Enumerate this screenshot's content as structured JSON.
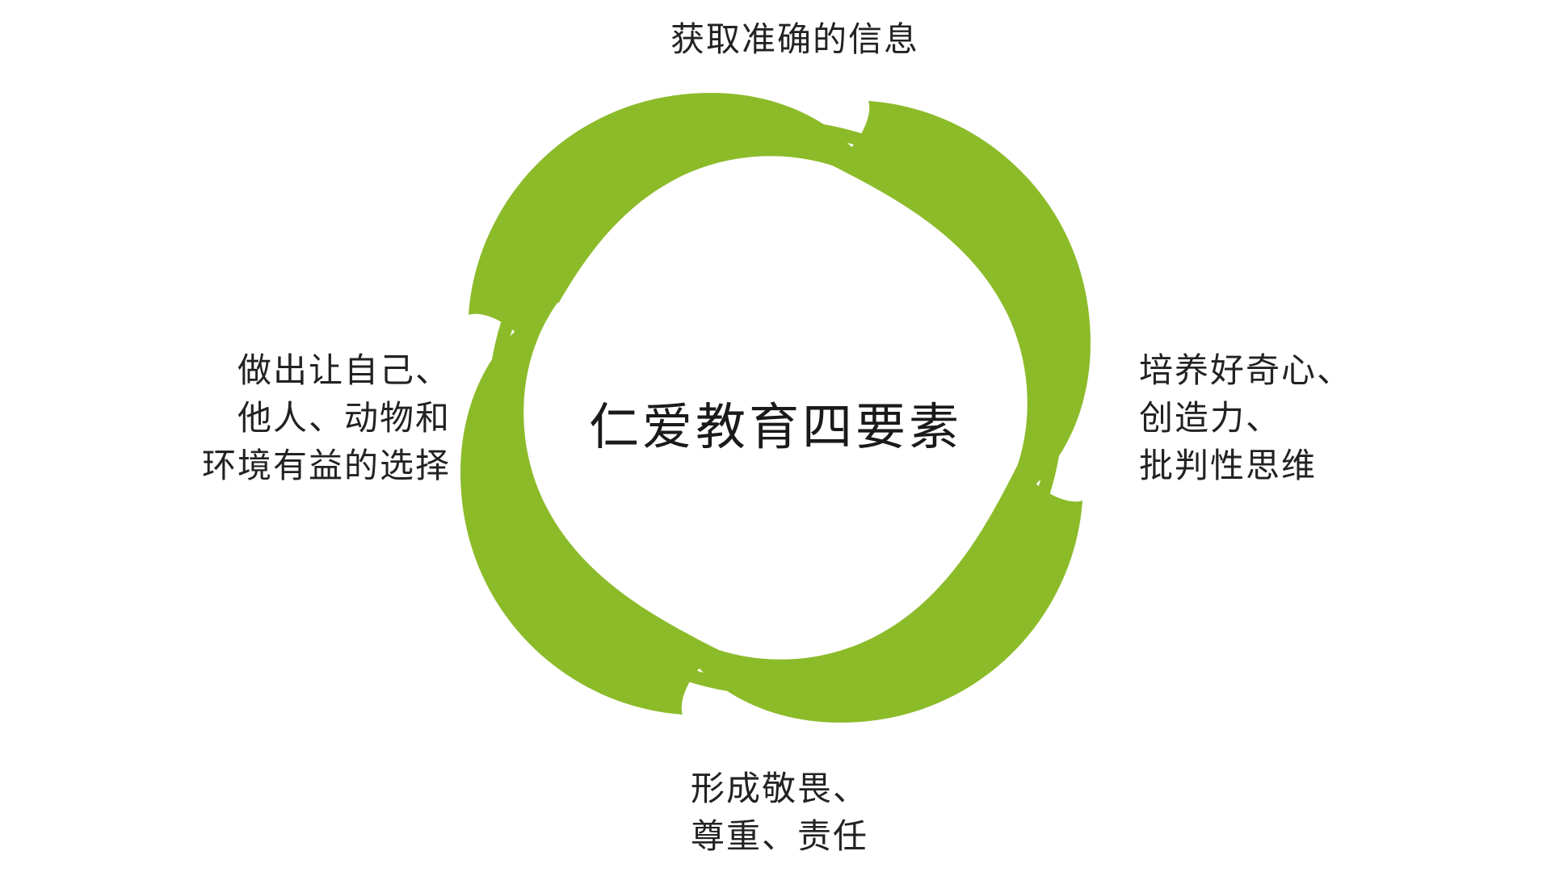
{
  "diagram": {
    "center_title": "仁爱教育四要素",
    "accent_color": "#8cbb2a",
    "elements": [
      {
        "id": "top",
        "lines": [
          "获取准确的信息"
        ]
      },
      {
        "id": "right",
        "lines": [
          "培养好奇心、",
          "创造力、",
          "批判性思维"
        ]
      },
      {
        "id": "bottom",
        "lines": [
          "形成敬畏、",
          "尊重、责任"
        ]
      },
      {
        "id": "left",
        "lines": [
          "做出让自己、",
          "他人、动物和",
          "环境有益的选择"
        ]
      }
    ]
  }
}
